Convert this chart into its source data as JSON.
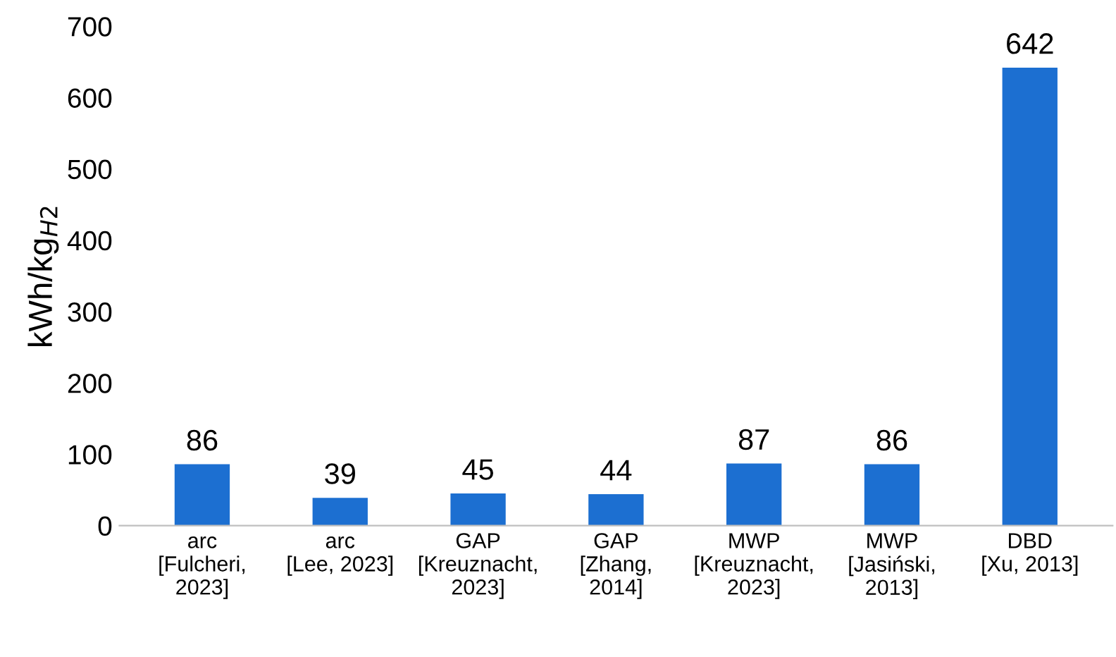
{
  "chart_data": {
    "type": "bar",
    "ylabel": "kWh/kg$_{H2}$",
    "categories": [
      "arc\n[Fulcheri,\n2023]",
      "arc\n[Lee, 2023]",
      "GAP\n[Kreuznacht,\n2023]",
      "GAP\n[Zhang,\n2014]",
      "MWP\n[Kreuznacht,\n2023]",
      "MWP\n[Jasiński,\n2013]",
      "DBD\n[Xu, 2013]"
    ],
    "values": [
      86,
      39,
      45,
      44,
      87,
      86,
      642
    ],
    "color": "#1c6fd1",
    "ylim": [
      0,
      700
    ],
    "yticks": [
      0,
      100,
      200,
      300,
      400,
      500,
      600,
      700
    ],
    "grid": false,
    "data_labels": true
  }
}
